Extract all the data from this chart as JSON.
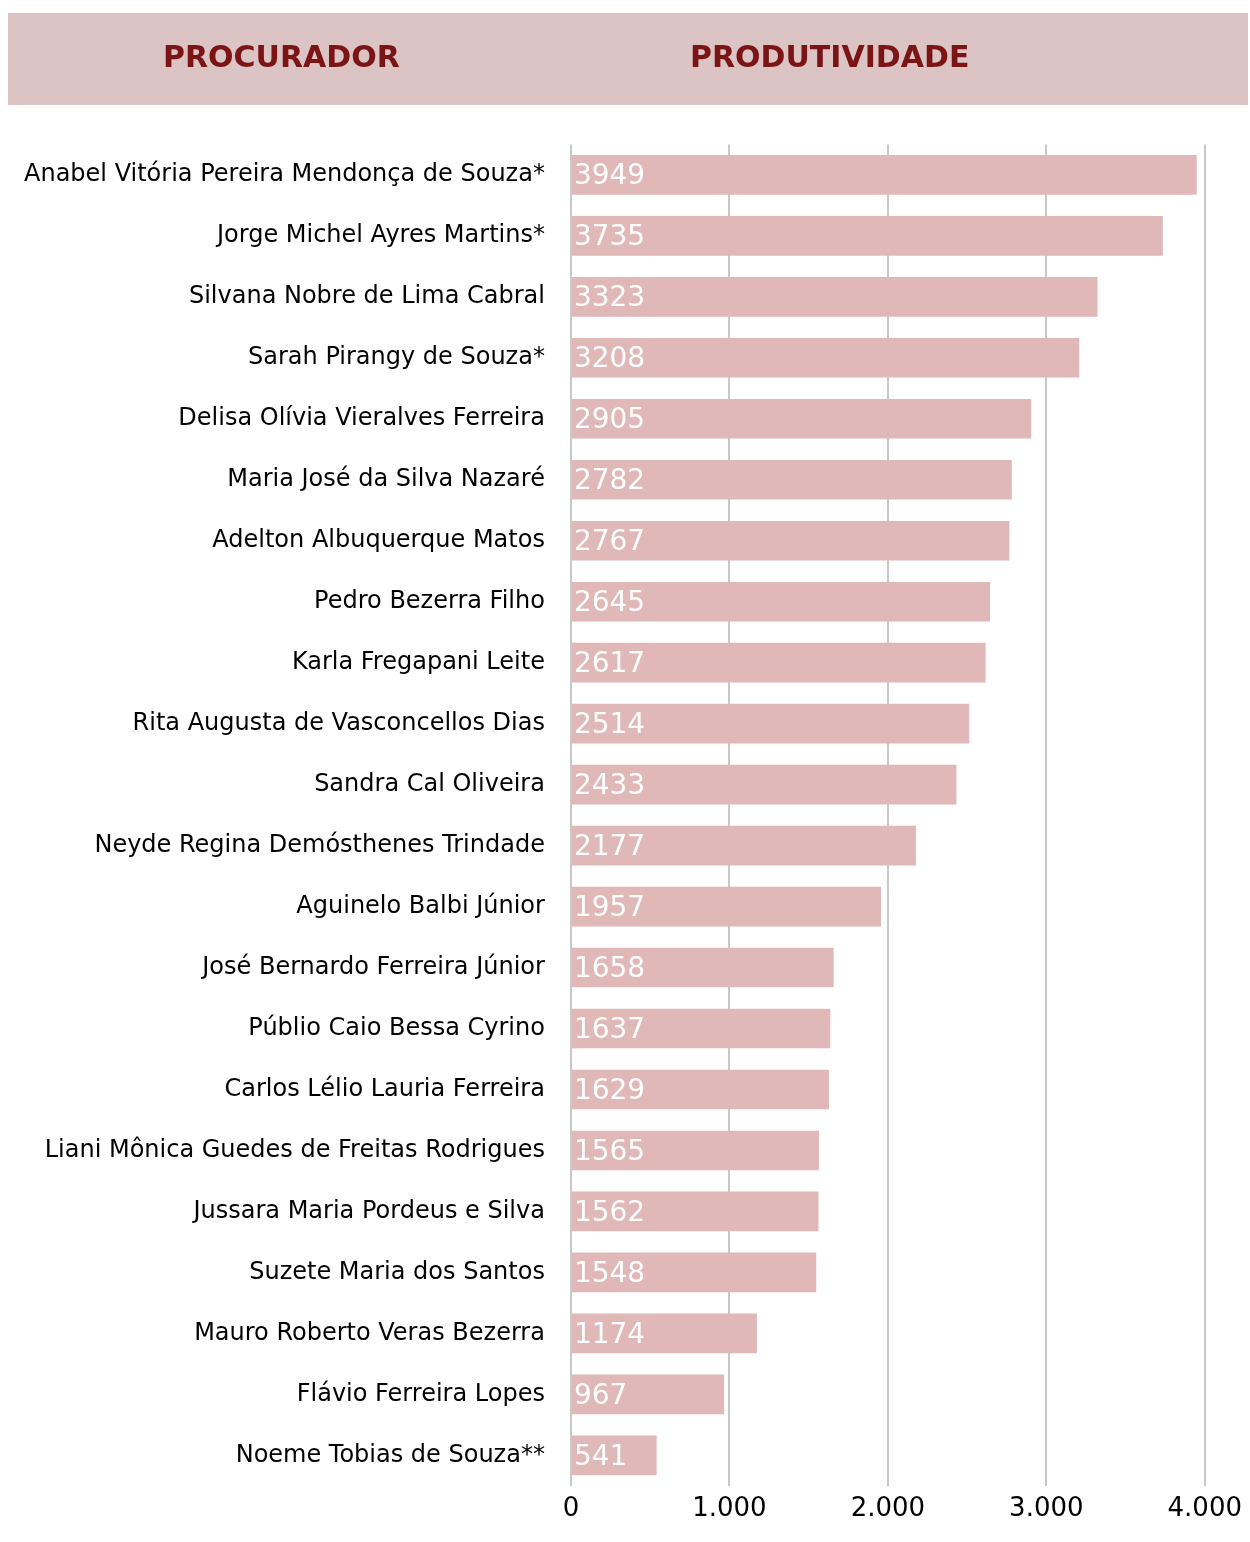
{
  "chart_data": {
    "type": "bar",
    "orientation": "horizontal",
    "ylabel": "PROCURADOR",
    "xlabel": "PRODUTIVIDADE",
    "categories": [
      "Anabel Vitória Pereira Mendonça de Souza*",
      "Jorge Michel Ayres Martins*",
      "Silvana Nobre de Lima Cabral",
      "Sarah Pirangy de Souza*",
      "Delisa Olívia Vieralves Ferreira",
      "Maria José da Silva Nazaré",
      "Adelton Albuquerque Matos",
      "Pedro Bezerra Filho",
      "Karla Fregapani Leite",
      "Rita Augusta de Vasconcellos Dias",
      "Sandra Cal Oliveira",
      "Neyde Regina Demósthenes Trindade",
      "Aguinelo Balbi Júnior",
      "José Bernardo Ferreira Júnior",
      "Públio Caio Bessa Cyrino",
      "Carlos Lélio Lauria Ferreira",
      "Liani Mônica Guedes de Freitas Rodrigues",
      "Jussara Maria Pordeus e Silva",
      "Suzete Maria dos Santos",
      "Mauro Roberto Veras Bezerra",
      "Flávio Ferreira Lopes",
      "Noeme Tobias de Souza**"
    ],
    "values": [
      3949,
      3735,
      3323,
      3208,
      2905,
      2782,
      2767,
      2645,
      2617,
      2514,
      2433,
      2177,
      1957,
      1658,
      1637,
      1629,
      1565,
      1562,
      1548,
      1174,
      967,
      541
    ],
    "color": "#e0b8b8",
    "xlim": [
      0,
      4000
    ],
    "xticks": [
      0,
      {
        "value": 1000,
        "label": "1.000"
      },
      {
        "value": 2000,
        "label": "2.000"
      },
      {
        "value": 3000,
        "label": "3.000"
      },
      {
        "value": 4000,
        "label": "4.000"
      }
    ],
    "grid": "x",
    "data_labels": true,
    "legend": false
  }
}
